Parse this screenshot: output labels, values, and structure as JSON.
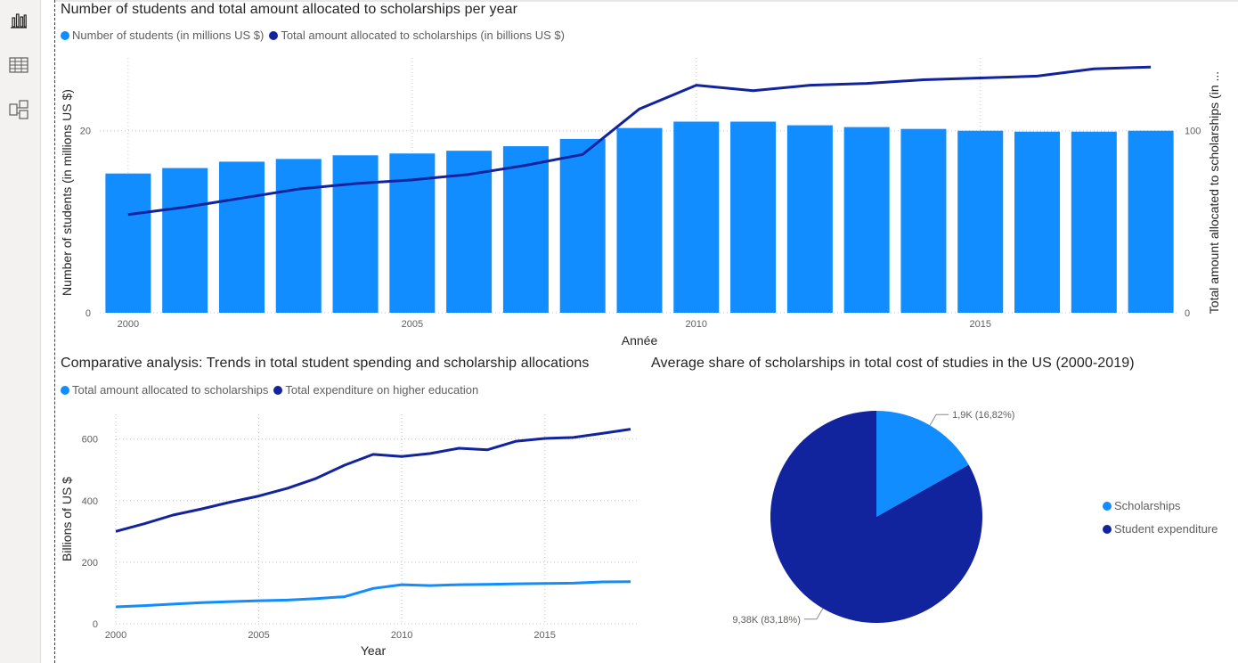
{
  "colors": {
    "light": "#118dff",
    "dark": "#12239e"
  },
  "rail": {
    "icons": [
      "report-view-icon",
      "data-view-icon",
      "model-view-icon"
    ]
  },
  "chart1": {
    "title": "Number of students and total amount allocated to scholarships per year",
    "legend": [
      {
        "name": "Number of students (in millions US $)",
        "color": "#118dff"
      },
      {
        "name": "Total amount allocated to scholarships (in billions US $)",
        "color": "#12239e"
      }
    ]
  },
  "chart2": {
    "title": "Comparative analysis: Trends in total student spending and scholarship allocations",
    "legend": [
      {
        "name": "Total amount allocated to scholarships",
        "color": "#118dff"
      },
      {
        "name": "Total expenditure on higher education",
        "color": "#12239e"
      }
    ]
  },
  "chart3": {
    "title": "Average share of scholarships in total cost of studies in the US (2000-2019)",
    "legend": [
      {
        "name": "Scholarships",
        "color": "#118dff"
      },
      {
        "name": "Student expenditure",
        "color": "#12239e"
      }
    ]
  },
  "chart_data": [
    {
      "type": "bar",
      "title": "Number of students and total amount allocated to scholarships per year",
      "xlabel": "Année",
      "ylabel": "Number of students (in millions US $)",
      "y2label": "Total amount allocated to scholarships (in ...",
      "ylim": [
        0,
        28
      ],
      "y2lim": [
        0,
        140
      ],
      "yticks": [
        0,
        20
      ],
      "y2ticks": [
        0,
        100
      ],
      "xticks": [
        2000,
        2005,
        2010,
        2015
      ],
      "x": [
        2000,
        2001,
        2002,
        2003,
        2004,
        2005,
        2006,
        2007,
        2008,
        2009,
        2010,
        2011,
        2012,
        2013,
        2014,
        2015,
        2016,
        2017,
        2018
      ],
      "series": [
        {
          "name": "Number of students (in millions US $)",
          "kind": "bar",
          "axis": "left",
          "values": [
            15.3,
            15.9,
            16.6,
            16.9,
            17.3,
            17.5,
            17.8,
            18.3,
            19.1,
            20.3,
            21.0,
            21.0,
            20.6,
            20.4,
            20.2,
            20.0,
            19.9,
            19.9,
            20.0
          ]
        },
        {
          "name": "Total amount allocated to scholarships (in billions US $)",
          "kind": "line",
          "axis": "right",
          "values": [
            54,
            58,
            63,
            68,
            71,
            73,
            76,
            81,
            87,
            112,
            125,
            122,
            125,
            126,
            128,
            129,
            130,
            134,
            135
          ]
        }
      ],
      "grid": true,
      "legend_position": "top-left"
    },
    {
      "type": "line",
      "title": "Comparative analysis: Trends in total student spending and scholarship allocations",
      "xlabel": "Year",
      "ylabel": "Billions of US $",
      "ylim": [
        0,
        680
      ],
      "yticks": [
        0,
        200,
        400,
        600
      ],
      "xticks": [
        2000,
        2005,
        2010,
        2015
      ],
      "x": [
        2000,
        2001,
        2002,
        2003,
        2004,
        2005,
        2006,
        2007,
        2008,
        2009,
        2010,
        2011,
        2012,
        2013,
        2014,
        2015,
        2016,
        2017,
        2018
      ],
      "series": [
        {
          "name": "Total amount allocated to scholarships",
          "values": [
            55,
            59,
            64,
            69,
            72,
            75,
            77,
            82,
            88,
            115,
            127,
            124,
            127,
            128,
            130,
            131,
            132,
            136,
            137
          ]
        },
        {
          "name": "Total expenditure on higher education",
          "values": [
            300,
            325,
            353,
            373,
            395,
            415,
            440,
            472,
            515,
            550,
            543,
            553,
            570,
            565,
            593,
            602,
            605,
            618,
            632
          ]
        }
      ],
      "grid": true,
      "legend_position": "top-left"
    },
    {
      "type": "pie",
      "title": "Average share of scholarships in total cost of studies in the US (2000-2019)",
      "slices": [
        {
          "name": "Scholarships",
          "value": 1900,
          "percent": 16.82,
          "label": "1,9K (16,82%)"
        },
        {
          "name": "Student expenditure",
          "value": 9380,
          "percent": 83.18,
          "label": "9,38K (83,18%)"
        }
      ],
      "legend_position": "right"
    }
  ]
}
